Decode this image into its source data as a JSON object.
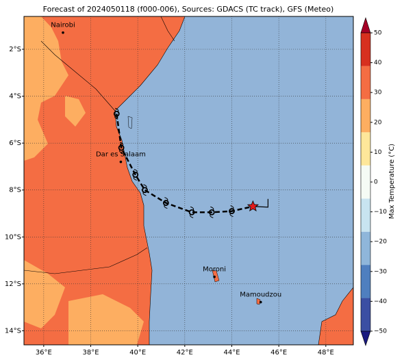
{
  "title": "Forecast of 2024050118 (f000-006), Sources: GDACS (TC track), GFS (Meteo)",
  "map": {
    "lon_range": [
      35.16,
      49.17
    ],
    "lat_range": [
      -0.6,
      -14.6
    ],
    "lon_ticks": [
      {
        "value": 36,
        "label": "36°E"
      },
      {
        "value": 38,
        "label": "38°E"
      },
      {
        "value": 40,
        "label": "40°E"
      },
      {
        "value": 42,
        "label": "42°E"
      },
      {
        "value": 44,
        "label": "44°E"
      },
      {
        "value": 46,
        "label": "46°E"
      },
      {
        "value": 48,
        "label": "48°E"
      }
    ],
    "lat_ticks": [
      {
        "value": -2,
        "label": "2°S"
      },
      {
        "value": -4,
        "label": "4°S"
      },
      {
        "value": -6,
        "label": "6°S"
      },
      {
        "value": -8,
        "label": "8°S"
      },
      {
        "value": -10,
        "label": "10°S"
      },
      {
        "value": -12,
        "label": "12°S"
      },
      {
        "value": -14,
        "label": "14°S"
      }
    ],
    "cities": [
      {
        "name": "Nairobi",
        "lon": 36.82,
        "lat": -1.29
      },
      {
        "name": "Dar es Salaam",
        "lon": 39.28,
        "lat": -6.8
      },
      {
        "name": "Moroni",
        "lon": 43.26,
        "lat": -11.7
      },
      {
        "name": "Mamoudzou",
        "lon": 45.23,
        "lat": -12.78
      }
    ],
    "track": {
      "lon": [
        39.1,
        39.3,
        39.9,
        40.3,
        41.2,
        42.3,
        43.15,
        44.0,
        44.9
      ],
      "lat": [
        -4.75,
        -6.2,
        -7.35,
        -8.0,
        -8.55,
        -8.95,
        -8.95,
        -8.9,
        -8.7
      ]
    }
  },
  "colorbar": {
    "label": "Max Temperature (°C)",
    "range": [
      -50,
      50
    ],
    "ticks": [
      {
        "value": -50,
        "label": "−50"
      },
      {
        "value": -40,
        "label": "−40"
      },
      {
        "value": -30,
        "label": "−30"
      },
      {
        "value": -20,
        "label": "−20"
      },
      {
        "value": -10,
        "label": "−10"
      },
      0,
      10,
      20,
      30,
      40,
      50
    ],
    "colors": [
      "#1a1a80",
      "#3b4fa3",
      "#4f7fbf",
      "#8fb6da",
      "#c8e4f0",
      "#f5fbf5",
      "#fee79a",
      "#fdae61",
      "#f46d43",
      "#d7301f",
      "#a50026"
    ]
  }
}
